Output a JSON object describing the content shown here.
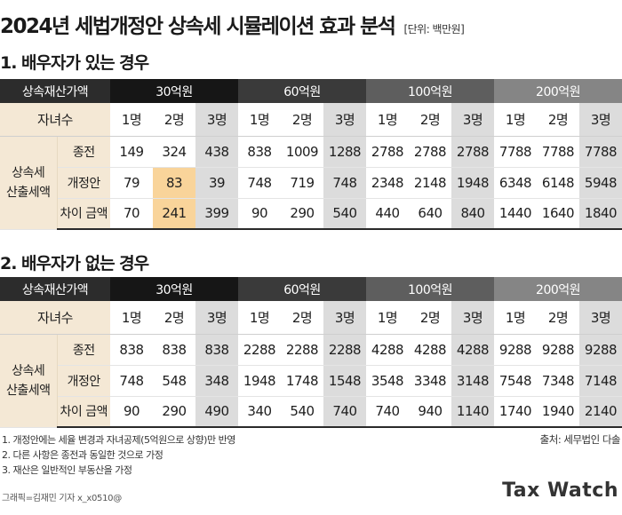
{
  "title": "2024년 세법개정안 상속세 시뮬레이션 효과 분석",
  "unit": "[단위: 백만원]",
  "sections": [
    {
      "title": "1. 배우자가 있는 경우",
      "header_label": "상속재산가액",
      "amounts": [
        "30억원",
        "60억원",
        "100억원",
        "200억원"
      ],
      "kids_label": "자녀수",
      "kids": [
        "1명",
        "2명",
        "3명"
      ],
      "group_label_line1": "상속세",
      "group_label_line2": "산출세액",
      "rows": [
        {
          "label": "종전",
          "values": [
            "149",
            "324",
            "438",
            "838",
            "1009",
            "1288",
            "2788",
            "2788",
            "2788",
            "7788",
            "7788",
            "7788"
          ]
        },
        {
          "label": "개정안",
          "values": [
            "79",
            "83",
            "39",
            "748",
            "719",
            "748",
            "2348",
            "2148",
            "1948",
            "6348",
            "6148",
            "5948"
          ]
        },
        {
          "label": "차이 금액",
          "values": [
            "70",
            "241",
            "399",
            "90",
            "290",
            "540",
            "440",
            "640",
            "840",
            "1440",
            "1640",
            "1840"
          ]
        }
      ]
    },
    {
      "title": "2. 배우자가 없는 경우",
      "header_label": "상속재산가액",
      "amounts": [
        "30억원",
        "60억원",
        "100억원",
        "200억원"
      ],
      "kids_label": "자녀수",
      "kids": [
        "1명",
        "2명",
        "3명"
      ],
      "group_label_line1": "상속세",
      "group_label_line2": "산출세액",
      "rows": [
        {
          "label": "종전",
          "values": [
            "838",
            "838",
            "838",
            "2288",
            "2288",
            "2288",
            "4288",
            "4288",
            "4288",
            "9288",
            "9288",
            "9288"
          ]
        },
        {
          "label": "개정안",
          "values": [
            "748",
            "548",
            "348",
            "1948",
            "1748",
            "1548",
            "3548",
            "3348",
            "3148",
            "7548",
            "7348",
            "7148"
          ]
        },
        {
          "label": "차이 금액",
          "values": [
            "90",
            "290",
            "490",
            "340",
            "540",
            "740",
            "740",
            "940",
            "1140",
            "1740",
            "1940",
            "2140"
          ]
        }
      ]
    }
  ],
  "notes": [
    "1. 개정안에는 세율 변경과 자녀공제(5억원으로 상향)만 반영",
    "2. 다른 사항은 종전과 동일한 것으로 가정",
    "3. 재산은 일반적인 부동산을 가정"
  ],
  "source": "출처: 세무법인 다솔",
  "credit": "그래픽=김재민 기자 x_x0510@",
  "logo": "Tax Watch",
  "colors": {
    "header_dark": "#161616",
    "label_tan": "#f4e8d5",
    "highlight": "#f9d49a",
    "three_kids_gray": "#dcdcdc"
  }
}
